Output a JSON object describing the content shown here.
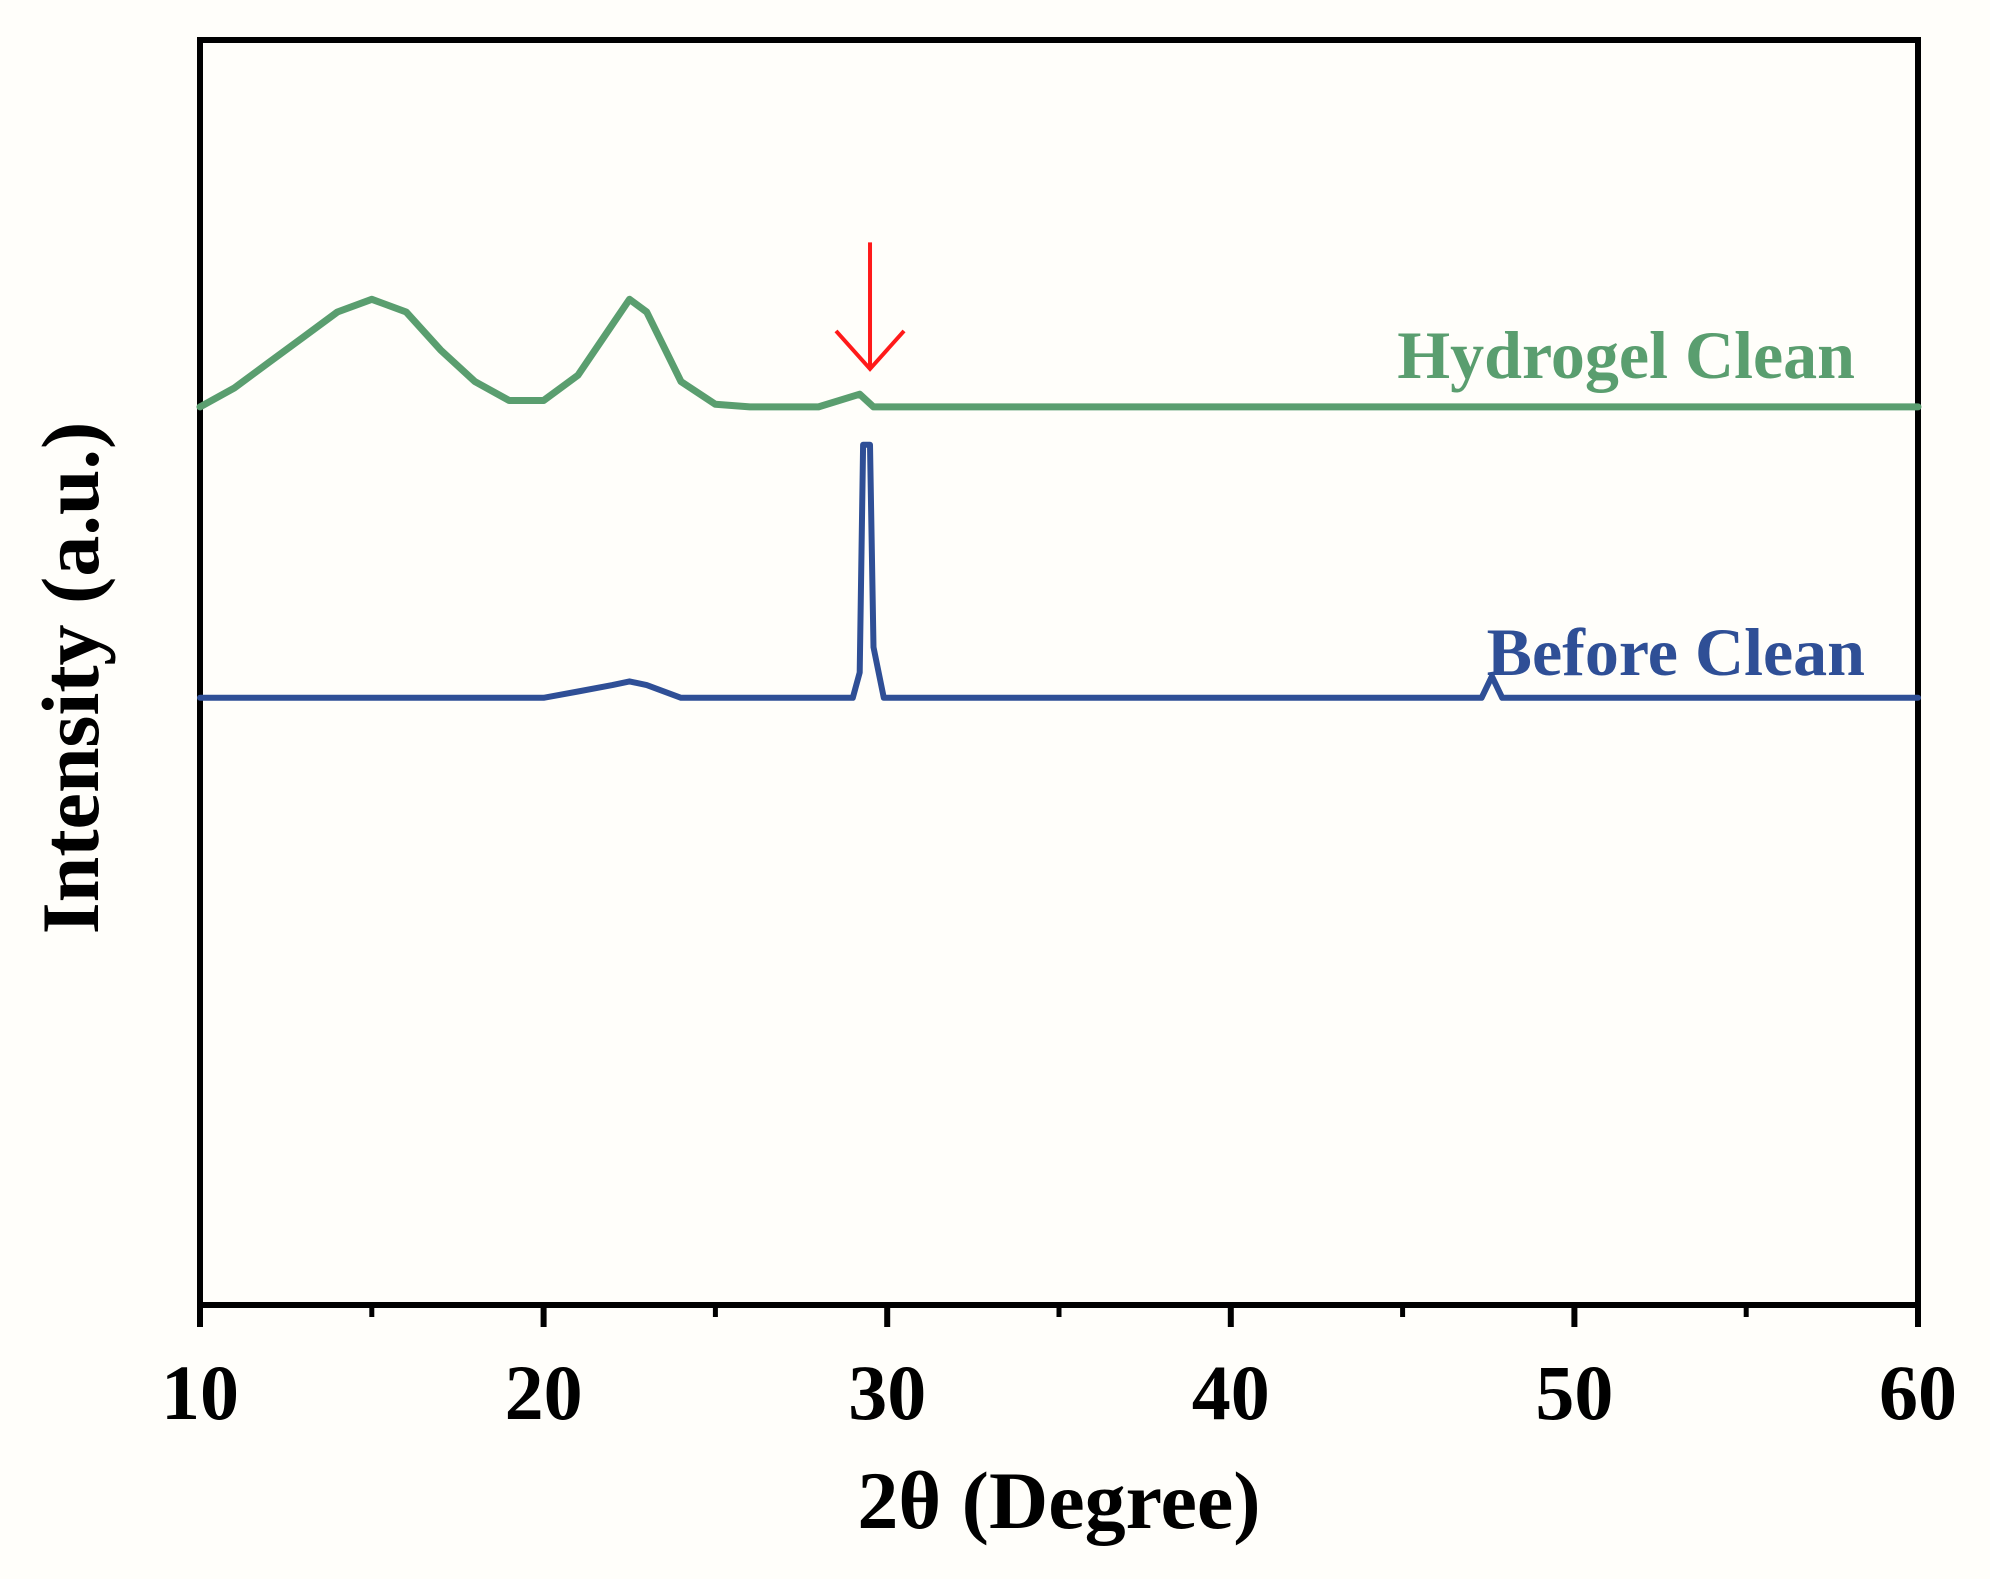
{
  "chart_data": {
    "type": "line",
    "title": "",
    "xlabel": "2θ (Degree)",
    "ylabel": "Intensity (a.u.)",
    "xlim": [
      10,
      60
    ],
    "ylim": [
      0,
      100
    ],
    "x_ticks": [
      10,
      20,
      30,
      40,
      50,
      60
    ],
    "x_tick_labels": [
      "10",
      "20",
      "30",
      "40",
      "50",
      "60"
    ],
    "grid": false,
    "legend": "labels placed beside each curve, right side",
    "series": [
      {
        "name": "Hydrogel Clean",
        "color": "#5a9e6f",
        "x": [
          10,
          11,
          12,
          13,
          14,
          15,
          16,
          17,
          18,
          19,
          20,
          21,
          22,
          22.5,
          23,
          24,
          25,
          26,
          28,
          29.2,
          29.6,
          31,
          35,
          40,
          45,
          50,
          55,
          60
        ],
        "y": [
          71,
          72.5,
          74.5,
          76.5,
          78.5,
          79.5,
          78.5,
          75.5,
          73,
          71.5,
          71.5,
          73.5,
          77.5,
          79.5,
          78.5,
          73,
          71.2,
          71,
          71,
          72,
          71,
          71,
          71,
          71,
          71,
          71,
          71,
          71
        ]
      },
      {
        "name": "Before Clean",
        "color": "#2f4f96",
        "x": [
          10,
          14,
          17,
          20,
          21,
          22,
          22.5,
          23,
          24,
          29.0,
          29.2,
          29.3,
          29.5,
          29.6,
          29.9,
          30.2,
          40,
          47.3,
          47.6,
          47.9,
          60
        ],
        "y": [
          48,
          48,
          48,
          48,
          48.5,
          49,
          49.3,
          49,
          48,
          48,
          50,
          68,
          68,
          52,
          48,
          48,
          48,
          48,
          49.7,
          48,
          48
        ]
      }
    ],
    "annotations": [
      {
        "type": "arrow",
        "color": "#ff1a1a",
        "x": 29.5,
        "y_from": 84,
        "y_to": 74
      }
    ]
  }
}
